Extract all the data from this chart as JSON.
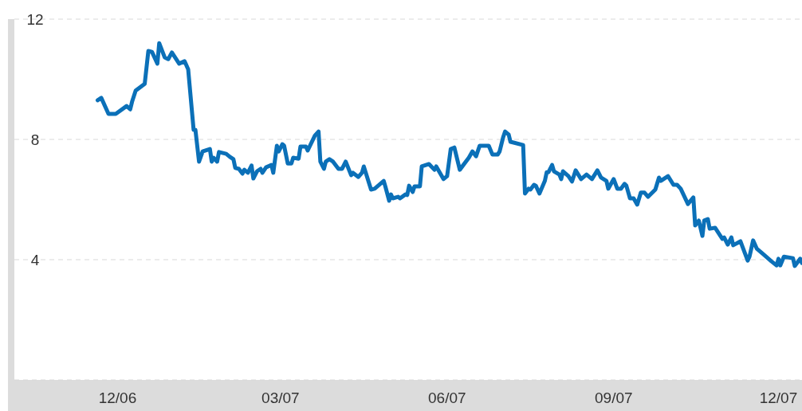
{
  "chart_data": {
    "type": "line",
    "x": [
      "2006-11-20",
      "2006-11-22",
      "2006-11-26",
      "2006-11-30",
      "2006-12-06",
      "2006-12-08",
      "2006-12-09",
      "2006-12-11",
      "2006-12-16",
      "2006-12-18",
      "2006-12-20",
      "2006-12-23",
      "2006-12-24",
      "2006-12-27",
      "2006-12-29",
      "2006-12-31",
      "2007-01-04",
      "2007-01-07",
      "2007-01-09",
      "2007-01-12",
      "2007-01-13",
      "2007-01-15",
      "2007-01-17",
      "2007-01-21",
      "2007-01-22",
      "2007-01-23",
      "2007-01-25",
      "2007-01-26",
      "2007-01-30",
      "2007-02-01",
      "2007-02-03",
      "2007-02-04",
      "2007-02-06",
      "2007-02-08",
      "2007-02-09",
      "2007-02-11",
      "2007-02-13",
      "2007-02-14",
      "2007-02-16",
      "2007-02-18",
      "2007-02-19",
      "2007-02-21",
      "2007-02-24",
      "2007-02-25",
      "2007-02-27",
      "2007-02-28",
      "2007-03-02",
      "2007-03-03",
      "2007-03-05",
      "2007-03-07",
      "2007-03-08",
      "2007-03-11",
      "2007-03-12",
      "2007-03-15",
      "2007-03-16",
      "2007-03-20",
      "2007-03-22",
      "2007-03-23",
      "2007-03-25",
      "2007-03-26",
      "2007-03-28",
      "2007-03-30",
      "2007-04-02",
      "2007-04-04",
      "2007-04-06",
      "2007-04-09",
      "2007-04-10",
      "2007-04-13",
      "2007-04-15",
      "2007-04-16",
      "2007-04-20",
      "2007-04-22",
      "2007-04-27",
      "2007-04-28",
      "2007-04-30",
      "2007-05-01",
      "2007-05-02",
      "2007-05-05",
      "2007-05-06",
      "2007-05-09",
      "2007-05-10",
      "2007-05-11",
      "2007-05-13",
      "2007-05-14",
      "2007-05-17",
      "2007-05-18",
      "2007-05-22",
      "2007-05-25",
      "2007-05-26",
      "2007-05-30",
      "2007-06-01",
      "2007-06-03",
      "2007-06-05",
      "2007-06-08",
      "2007-06-13",
      "2007-06-15",
      "2007-06-17",
      "2007-06-19",
      "2007-06-24",
      "2007-06-26",
      "2007-06-29",
      "2007-06-30",
      "2007-07-02",
      "2007-07-03",
      "2007-07-05",
      "2007-07-06",
      "2007-07-13",
      "2007-07-14",
      "2007-07-16",
      "2007-07-17",
      "2007-07-19",
      "2007-07-20",
      "2007-07-22",
      "2007-07-25",
      "2007-07-26",
      "2007-07-27",
      "2007-07-29",
      "2007-07-30",
      "2007-08-02",
      "2007-08-03",
      "2007-08-04",
      "2007-08-07",
      "2007-08-09",
      "2007-08-11",
      "2007-08-14",
      "2007-08-17",
      "2007-08-20",
      "2007-08-23",
      "2007-08-25",
      "2007-08-28",
      "2007-08-29",
      "2007-09-01",
      "2007-09-03",
      "2007-09-05",
      "2007-09-07",
      "2007-09-08",
      "2007-09-10",
      "2007-09-12",
      "2007-09-14",
      "2007-09-16",
      "2007-09-18",
      "2007-09-20",
      "2007-09-24",
      "2007-09-26",
      "2007-09-27",
      "2007-10-01",
      "2007-10-04",
      "2007-10-06",
      "2007-10-08",
      "2007-10-12",
      "2007-10-15",
      "2007-10-16",
      "2007-10-18",
      "2007-10-20",
      "2007-10-21",
      "2007-10-23",
      "2007-10-24",
      "2007-10-27",
      "2007-10-31",
      "2007-11-01",
      "2007-11-03",
      "2007-11-05",
      "2007-11-06",
      "2007-11-10",
      "2007-11-14",
      "2007-11-15",
      "2007-11-17",
      "2007-11-19",
      "2007-11-23",
      "2007-11-27",
      "2007-11-30",
      "2007-12-01",
      "2007-12-02",
      "2007-12-04",
      "2007-12-09",
      "2007-12-10",
      "2007-12-13",
      "2007-12-14"
    ],
    "series": [
      {
        "color": "#0b70b8",
        "values": [
          9.3,
          9.38,
          8.85,
          8.85,
          9.11,
          9.0,
          9.25,
          9.62,
          9.85,
          10.94,
          10.91,
          10.52,
          11.2,
          10.73,
          10.67,
          10.89,
          10.52,
          10.6,
          10.33,
          8.32,
          8.32,
          7.26,
          7.6,
          7.68,
          7.26,
          7.39,
          7.26,
          7.58,
          7.52,
          7.42,
          7.34,
          7.05,
          7.02,
          6.86,
          6.99,
          6.89,
          7.13,
          6.7,
          6.94,
          7.02,
          6.89,
          7.07,
          7.15,
          6.89,
          7.79,
          7.6,
          7.84,
          7.79,
          7.2,
          7.2,
          7.39,
          7.36,
          7.76,
          7.76,
          7.63,
          8.13,
          8.26,
          7.26,
          7.02,
          7.26,
          7.34,
          7.26,
          7.02,
          7.02,
          7.26,
          6.81,
          6.89,
          6.75,
          6.89,
          7.1,
          6.33,
          6.36,
          6.62,
          6.41,
          5.96,
          6.17,
          6.04,
          6.09,
          6.04,
          6.17,
          6.15,
          6.46,
          6.25,
          6.44,
          6.44,
          7.1,
          7.18,
          6.99,
          7.1,
          6.68,
          6.78,
          7.68,
          7.73,
          6.99,
          7.39,
          7.6,
          7.44,
          7.79,
          7.79,
          7.5,
          7.5,
          7.6,
          8.08,
          8.26,
          8.16,
          7.92,
          7.81,
          6.2,
          6.36,
          6.33,
          6.49,
          6.46,
          6.2,
          6.62,
          6.91,
          6.91,
          7.15,
          6.94,
          6.83,
          6.68,
          6.94,
          6.78,
          6.6,
          6.97,
          6.68,
          6.83,
          6.68,
          6.97,
          6.73,
          6.62,
          6.36,
          6.68,
          6.36,
          6.36,
          6.52,
          6.46,
          6.04,
          6.04,
          5.83,
          6.23,
          6.23,
          6.09,
          6.33,
          6.73,
          6.62,
          6.78,
          6.49,
          6.49,
          6.36,
          5.85,
          6.07,
          5.14,
          5.3,
          4.79,
          5.3,
          5.35,
          5.03,
          5.06,
          4.69,
          4.74,
          4.5,
          4.74,
          4.48,
          4.61,
          3.97,
          4.1,
          4.64,
          4.37,
          4.16,
          3.95,
          3.81,
          4.03,
          3.81,
          4.1,
          4.05,
          3.79,
          4.03,
          3.89
        ]
      }
    ],
    "xlim": [
      "2006-10-05",
      "2007-12-14"
    ],
    "xticks": [
      {
        "value": "2006-12-01",
        "label": "12/06"
      },
      {
        "value": "2007-03-01",
        "label": "03/07"
      },
      {
        "value": "2007-06-01",
        "label": "06/07"
      },
      {
        "value": "2007-09-01",
        "label": "09/07"
      },
      {
        "value": "2007-12-01",
        "label": "12/07"
      }
    ],
    "ylim": [
      0,
      12
    ],
    "yticks": [
      4,
      8,
      12
    ],
    "grid": "y",
    "marker": "none",
    "line_style": "solid"
  }
}
